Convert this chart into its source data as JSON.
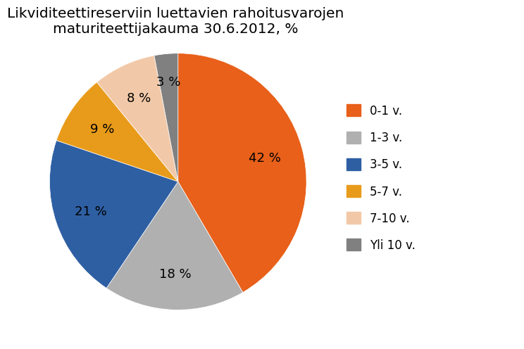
{
  "title": "Likviditeettireserviin luettavien rahoitusvarojen\nmaturiteettijakauma 30.6.2012, %",
  "slices": [
    42,
    18,
    21,
    9,
    8,
    3
  ],
  "labels": [
    "0-1 v.",
    "1-3 v.",
    "3-5 v.",
    "5-7 v.",
    "7-10 v.",
    "Yli 10 v."
  ],
  "colors": [
    "#E8601A",
    "#B0B0B0",
    "#2E5FA3",
    "#E89B1A",
    "#F2C9A8",
    "#808080"
  ],
  "pct_labels": [
    "42 %",
    "18 %",
    "21 %",
    "9 %",
    "8 %",
    "3 %"
  ],
  "background_color": "#FFFFFF",
  "title_fontsize": 14.5,
  "label_fontsize": 13,
  "legend_fontsize": 12,
  "startangle": 90,
  "r_text": [
    0.7,
    0.72,
    0.72,
    0.72,
    0.72,
    0.78
  ]
}
